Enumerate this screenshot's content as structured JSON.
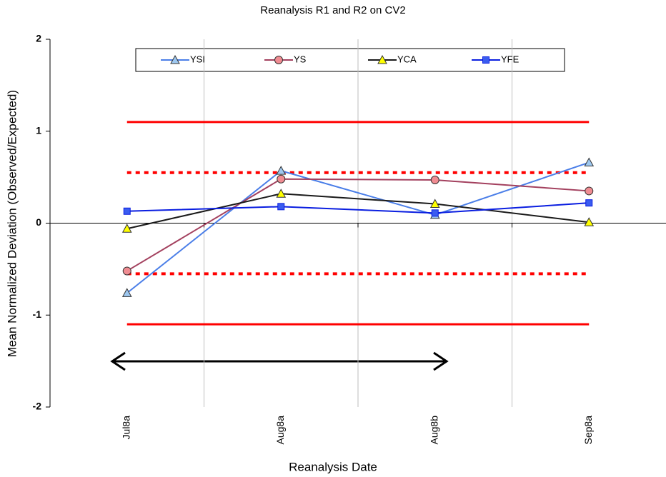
{
  "chart_data": {
    "type": "line",
    "title": "Reanalysis R1 and R2 on CV2",
    "x_label": "Reanalysis Date",
    "y_label": "Mean Normalized Deviation (Observed/Expected)",
    "categories": [
      "Jul8a",
      "Aug8a",
      "Aug8b",
      "Sep8a"
    ],
    "series": [
      {
        "name": "YSI",
        "color": "#4a7ee8",
        "marker": "triangle",
        "marker_fill": "#9ec8f0",
        "values": [
          -0.76,
          0.57,
          0.09,
          0.66
        ]
      },
      {
        "name": "YS",
        "color": "#a3405e",
        "marker": "circle",
        "marker_fill": "#f08c92",
        "values": [
          -0.52,
          0.48,
          0.47,
          0.35
        ]
      },
      {
        "name": "YCA",
        "color": "#1a1a1a",
        "marker": "triangle",
        "marker_fill": "#ffff00",
        "values": [
          -0.06,
          0.32,
          0.21,
          0.01
        ]
      },
      {
        "name": "YFE",
        "color": "#0a1ee0",
        "marker": "square",
        "marker_fill": "#3a5cf0",
        "values": [
          0.13,
          0.18,
          0.11,
          0.22
        ]
      }
    ],
    "reference_lines": [
      {
        "value": 1.1,
        "style": "solid",
        "color": "#ff0000"
      },
      {
        "value": 0.55,
        "style": "dotted",
        "color": "#ff0000"
      },
      {
        "value": -0.55,
        "style": "dotted",
        "color": "#ff0000"
      },
      {
        "value": -1.1,
        "style": "solid",
        "color": "#ff0000"
      }
    ],
    "ylim": [
      -2,
      2
    ],
    "yticks": [
      -2,
      -1,
      0,
      1,
      2
    ],
    "grid": "x"
  }
}
